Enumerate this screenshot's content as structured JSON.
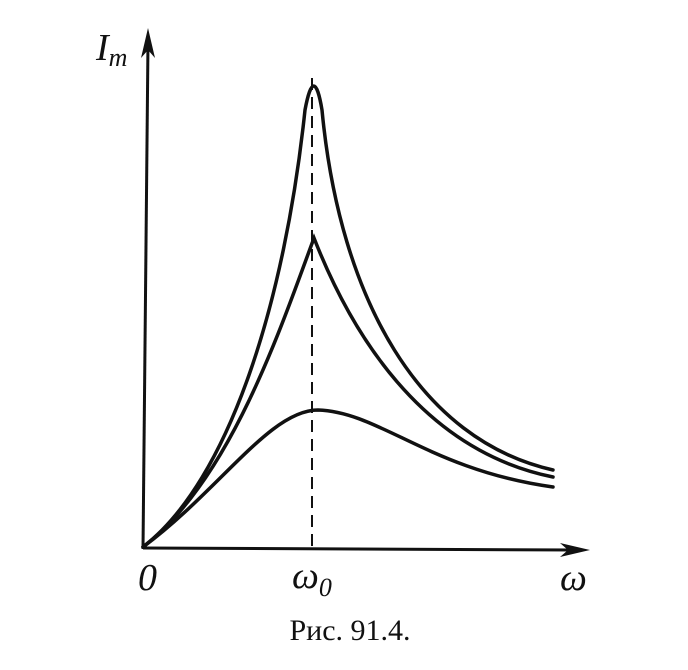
{
  "y_axis_label": {
    "base": "I",
    "sub": "m"
  },
  "x_axis_label": "ω",
  "origin_label": "0",
  "resonance_label": {
    "base": "ω",
    "sub": "0"
  },
  "caption": "Рис. 91.4."
}
